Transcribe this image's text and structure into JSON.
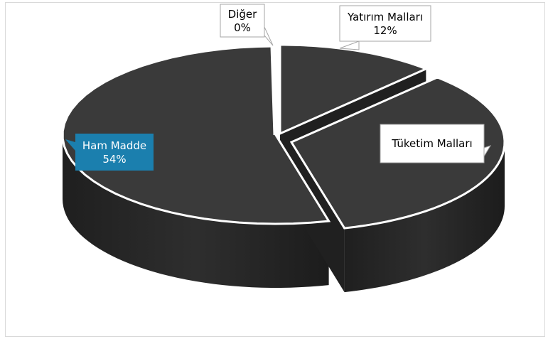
{
  "chart_data": {
    "type": "pie",
    "title": "",
    "slices": [
      {
        "label": "Yatırım Malları",
        "value_text": "12%",
        "value": 12
      },
      {
        "label": "Tüketim Malları",
        "value_text": "",
        "value": 34
      },
      {
        "label": "Ham Madde",
        "value_text": "54%",
        "value": 54
      },
      {
        "label": "Diğer",
        "value_text": "0%",
        "value": 0
      }
    ],
    "colors": {
      "slice": "#3a3a3a",
      "side": "#262626",
      "highlight_label_bg": "#1b7fae",
      "label_bg": "#ffffff",
      "label_border": "#a6a6a6"
    },
    "legend": "none"
  }
}
